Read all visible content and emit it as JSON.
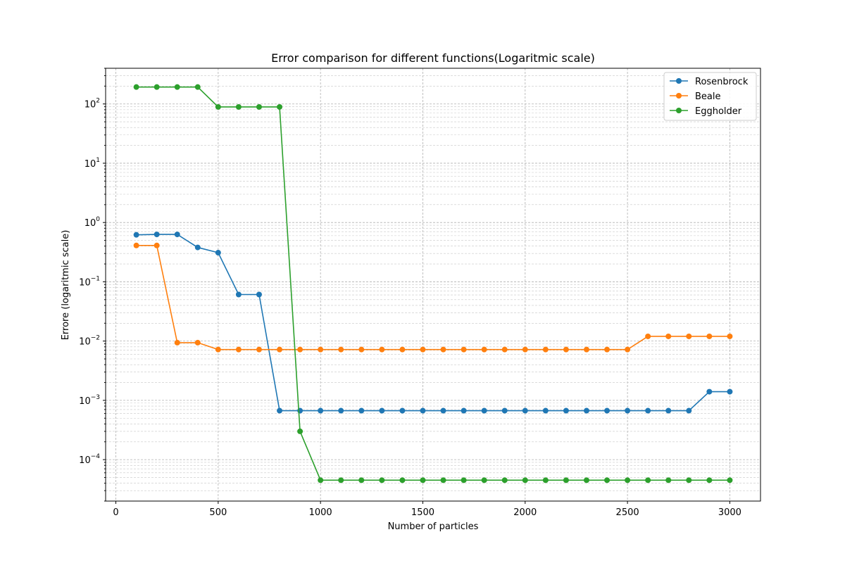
{
  "chart_data": {
    "type": "line",
    "title": "Error comparison for different functions(Logaritmic scale)",
    "xlabel": "Number of particles",
    "ylabel": "Errore (logaritmic scale)",
    "xlim": [
      -50,
      3150
    ],
    "ylim": [
      2e-05,
      400
    ],
    "yscale": "log",
    "grid": true,
    "legend_position": "top-right",
    "x_ticks": [
      "0",
      "500",
      "1000",
      "1500",
      "2000",
      "2500",
      "3000"
    ],
    "x_tick_values": [
      0,
      500,
      1000,
      1500,
      2000,
      2500,
      3000
    ],
    "y_tick_values": [
      0.0001,
      0.001,
      0.01,
      0.1,
      1,
      10,
      100
    ],
    "y_tick_exponents": [
      "−4",
      "−3",
      "−2",
      "−1",
      "0",
      "1",
      "2"
    ],
    "y_tick_base": "10",
    "x": [
      100,
      200,
      300,
      400,
      500,
      600,
      700,
      800,
      900,
      1000,
      1100,
      1200,
      1300,
      1400,
      1500,
      1600,
      1700,
      1800,
      1900,
      2000,
      2100,
      2200,
      2300,
      2400,
      2500,
      2600,
      2700,
      2800,
      2900,
      3000
    ],
    "series": [
      {
        "name": "Rosenbrock",
        "color": "#1f77b4",
        "values": [
          0.62,
          0.63,
          0.63,
          0.38,
          0.31,
          0.061,
          0.061,
          0.00067,
          0.00067,
          0.00067,
          0.00067,
          0.00067,
          0.00067,
          0.00067,
          0.00067,
          0.00067,
          0.00067,
          0.00067,
          0.00067,
          0.00067,
          0.00067,
          0.00067,
          0.00067,
          0.00067,
          0.00067,
          0.00067,
          0.00067,
          0.00067,
          0.0014,
          0.0014
        ]
      },
      {
        "name": "Beale",
        "color": "#ff7f0e",
        "values": [
          0.41,
          0.41,
          0.0094,
          0.0094,
          0.0072,
          0.0072,
          0.0072,
          0.0072,
          0.0072,
          0.0072,
          0.0072,
          0.0072,
          0.0072,
          0.0072,
          0.0072,
          0.0072,
          0.0072,
          0.0072,
          0.0072,
          0.0072,
          0.0072,
          0.0072,
          0.0072,
          0.0072,
          0.0072,
          0.012,
          0.012,
          0.012,
          0.012,
          0.012
        ]
      },
      {
        "name": "Eggholder",
        "color": "#2ca02c",
        "values": [
          193,
          193,
          193,
          193,
          89,
          89,
          89,
          89,
          0.0003,
          4.5e-05,
          4.5e-05,
          4.5e-05,
          4.5e-05,
          4.5e-05,
          4.5e-05,
          4.5e-05,
          4.5e-05,
          4.5e-05,
          4.5e-05,
          4.5e-05,
          4.5e-05,
          4.5e-05,
          4.5e-05,
          4.5e-05,
          4.5e-05,
          4.5e-05,
          4.5e-05,
          4.5e-05,
          4.5e-05,
          4.5e-05
        ]
      }
    ]
  }
}
